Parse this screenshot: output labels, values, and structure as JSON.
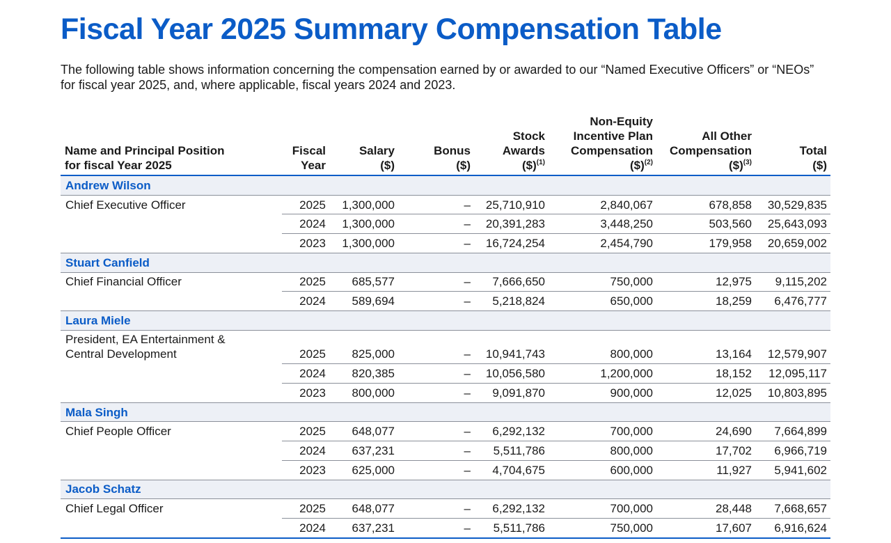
{
  "title": "Fiscal Year 2025 Summary Compensation Table",
  "intro": "The following table shows information concerning the compensation earned by or awarded to our “Named Executive Officers” or “NEOs” for fiscal year 2025, and, where applicable, fiscal years 2024 and 2023.",
  "table": {
    "headers": [
      {
        "lines": [
          "Name and Principal Position",
          "for fiscal Year 2025"
        ]
      },
      {
        "lines": [
          "Fiscal",
          "Year"
        ]
      },
      {
        "lines": [
          "Salary",
          "($)"
        ]
      },
      {
        "lines": [
          "Bonus",
          "($)"
        ]
      },
      {
        "lines": [
          "Stock",
          "Awards",
          "($)"
        ],
        "note": "(1)"
      },
      {
        "lines": [
          "Non-Equity",
          "Incentive Plan",
          "Compensation",
          "($)"
        ],
        "note": "(2)"
      },
      {
        "lines": [
          "All Other",
          "Compensation",
          "($)"
        ],
        "note": "(3)"
      },
      {
        "lines": [
          "Total",
          "($)"
        ]
      }
    ],
    "groups": [
      {
        "name": "Andrew Wilson",
        "position": [
          "Chief Executive Officer"
        ],
        "rows": [
          [
            "2025",
            "1,300,000",
            "–",
            "25,710,910",
            "2,840,067",
            "678,858",
            "30,529,835"
          ],
          [
            "2024",
            "1,300,000",
            "–",
            "20,391,283",
            "3,448,250",
            "503,560",
            "25,643,093"
          ],
          [
            "2023",
            "1,300,000",
            "–",
            "16,724,254",
            "2,454,790",
            "179,958",
            "20,659,002"
          ]
        ]
      },
      {
        "name": "Stuart Canfield",
        "position": [
          "Chief Financial Officer"
        ],
        "rows": [
          [
            "2025",
            "685,577",
            "–",
            "7,666,650",
            "750,000",
            "12,975",
            "9,115,202"
          ],
          [
            "2024",
            "589,694",
            "–",
            "5,218,824",
            "650,000",
            "18,259",
            "6,476,777"
          ]
        ]
      },
      {
        "name": "Laura Miele",
        "position": [
          "President, EA Entertainment &",
          "Central Development"
        ],
        "rows": [
          [
            "2025",
            "825,000",
            "–",
            "10,941,743",
            "800,000",
            "13,164",
            "12,579,907"
          ],
          [
            "2024",
            "820,385",
            "–",
            "10,056,580",
            "1,200,000",
            "18,152",
            "12,095,117"
          ],
          [
            "2023",
            "800,000",
            "–",
            "9,091,870",
            "900,000",
            "12,025",
            "10,803,895"
          ]
        ]
      },
      {
        "name": "Mala Singh",
        "position": [
          "Chief People Officer"
        ],
        "rows": [
          [
            "2025",
            "648,077",
            "–",
            "6,292,132",
            "700,000",
            "24,690",
            "7,664,899"
          ],
          [
            "2024",
            "637,231",
            "–",
            "5,511,786",
            "800,000",
            "17,702",
            "6,966,719"
          ],
          [
            "2023",
            "625,000",
            "–",
            "4,704,675",
            "600,000",
            "11,927",
            "5,941,602"
          ]
        ]
      },
      {
        "name": "Jacob Schatz",
        "position": [
          "Chief Legal Officer"
        ],
        "rows": [
          [
            "2025",
            "648,077",
            "–",
            "6,292,132",
            "700,000",
            "28,448",
            "7,668,657"
          ],
          [
            "2024",
            "637,231",
            "–",
            "5,511,786",
            "750,000",
            "17,607",
            "6,916,624"
          ]
        ]
      }
    ]
  }
}
